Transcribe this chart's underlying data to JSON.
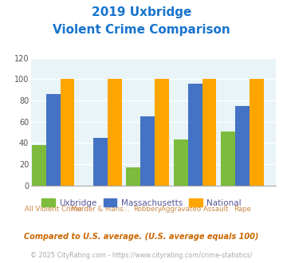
{
  "title_line1": "2019 Uxbridge",
  "title_line2": "Violent Crime Comparison",
  "cat_line1": [
    "",
    "Murder & Mans...",
    "",
    "Aggravated Assault",
    ""
  ],
  "cat_line2": [
    "All Violent Crime",
    "",
    "Robbery",
    "",
    "Rape"
  ],
  "uxbridge": [
    38,
    0,
    17,
    43,
    51
  ],
  "massachusetts": [
    86,
    45,
    65,
    96,
    75
  ],
  "national": [
    100,
    100,
    100,
    100,
    100
  ],
  "uxbridge_color": "#7CBB3B",
  "massachusetts_color": "#4472C4",
  "national_color": "#FFA500",
  "ylim": [
    0,
    120
  ],
  "yticks": [
    0,
    20,
    40,
    60,
    80,
    100,
    120
  ],
  "plot_bg": "#E8F4F8",
  "fig_bg": "#FFFFFF",
  "title_color": "#1874CD",
  "xlabel_color": "#CC8844",
  "legend_text_color": "#555599",
  "footnote1": "Compared to U.S. average. (U.S. average equals 100)",
  "footnote2": "© 2025 CityRating.com - https://www.cityrating.com/crime-statistics/",
  "footnote1_color": "#CC6600",
  "footnote2_color": "#AAAAAA"
}
